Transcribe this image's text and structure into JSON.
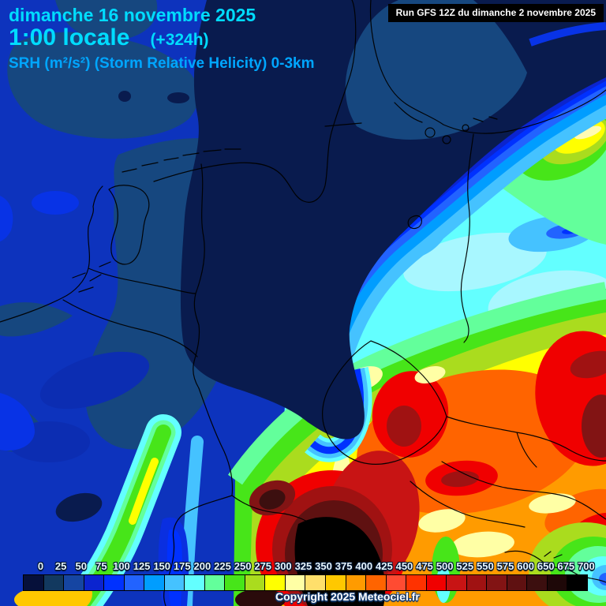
{
  "header": {
    "date": "dimanche 16 novembre 2025",
    "time": "1:00 locale",
    "offset": "(+324h)",
    "parameter": "SRH (m²/s²) (Storm Relative Helicity) 0-3km"
  },
  "run_info": {
    "text": "Run GFS 12Z du dimanche 2 novembre 2025"
  },
  "copyright": {
    "text": "Copyright 2025 Meteociel.fr"
  },
  "legend": {
    "values": [
      "0",
      "25",
      "50",
      "75",
      "100",
      "125",
      "150",
      "175",
      "200",
      "225",
      "250",
      "275",
      "300",
      "325",
      "350",
      "375",
      "400",
      "425",
      "450",
      "475",
      "500",
      "525",
      "550",
      "575",
      "600",
      "650",
      "675",
      "700"
    ],
    "colors": [
      "#06103a",
      "#12395f",
      "#1545a2",
      "#0b24cf",
      "#0031ff",
      "#2263ff",
      "#009dff",
      "#45c2ff",
      "#63ffff",
      "#63ff9b",
      "#47e519",
      "#aadc1e",
      "#ffff00",
      "#ffffa5",
      "#ffdf6b",
      "#ffc800",
      "#ff9b00",
      "#ff6400",
      "#ff4b32",
      "#ff3200",
      "#f00000",
      "#c81414",
      "#a01212",
      "#821414",
      "#5f1111",
      "#3c0f0f",
      "#1e0808",
      "#000000"
    ]
  },
  "colors": {
    "title_text": "#00dcff",
    "parameter_text": "#00a6ff",
    "run_box_bg": "#000000",
    "run_box_text": "#ffffff"
  }
}
